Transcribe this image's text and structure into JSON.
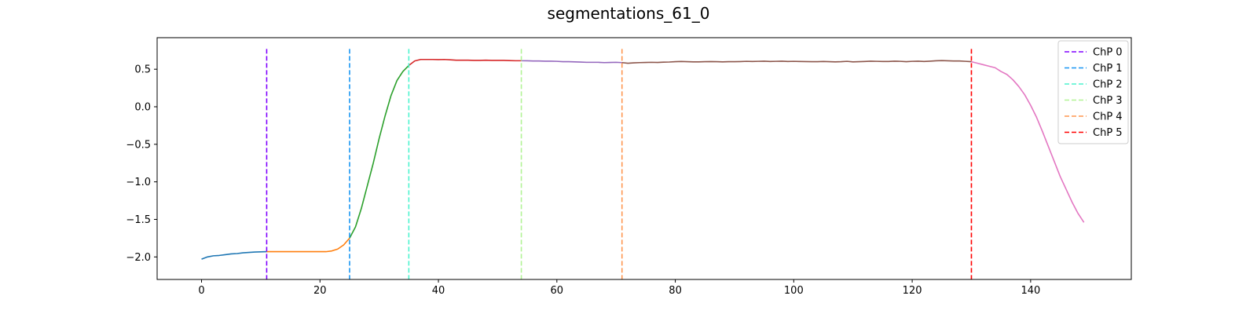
{
  "chart_data": {
    "type": "line",
    "title": "segmentations_61_0",
    "xlabel": "",
    "ylabel": "",
    "xlim": [
      -7.5,
      157
    ],
    "ylim": [
      -2.3,
      0.92
    ],
    "xticks": [
      0,
      20,
      40,
      60,
      80,
      100,
      120,
      140
    ],
    "yticks": [
      0.5,
      0.0,
      -0.5,
      -1.0,
      -1.5,
      -2.0
    ],
    "ytick_labels": [
      "0.5",
      "0.0",
      "−0.5",
      "−1.0",
      "−1.5",
      "−2.0"
    ],
    "grid": false,
    "legend_position": "top-right",
    "segments": [
      {
        "color": "#1f77b4",
        "points": [
          [
            0,
            -2.03
          ],
          [
            1,
            -2.0
          ],
          [
            2,
            -1.985
          ],
          [
            3,
            -1.98
          ],
          [
            4,
            -1.97
          ],
          [
            5,
            -1.96
          ],
          [
            6,
            -1.955
          ],
          [
            7,
            -1.945
          ],
          [
            8,
            -1.94
          ],
          [
            9,
            -1.935
          ],
          [
            10,
            -1.932
          ],
          [
            11,
            -1.93
          ]
        ]
      },
      {
        "color": "#ff7f0e",
        "points": [
          [
            11,
            -1.93
          ],
          [
            12,
            -1.93
          ],
          [
            13,
            -1.93
          ],
          [
            14,
            -1.93
          ],
          [
            15,
            -1.93
          ],
          [
            16,
            -1.93
          ],
          [
            17,
            -1.93
          ],
          [
            18,
            -1.93
          ],
          [
            19,
            -1.93
          ],
          [
            20,
            -1.93
          ],
          [
            21,
            -1.93
          ],
          [
            22,
            -1.92
          ],
          [
            23,
            -1.895
          ],
          [
            24,
            -1.84
          ],
          [
            25,
            -1.75
          ]
        ]
      },
      {
        "color": "#2ca02c",
        "points": [
          [
            25,
            -1.75
          ],
          [
            26,
            -1.6
          ],
          [
            27,
            -1.35
          ],
          [
            28,
            -1.05
          ],
          [
            29,
            -0.75
          ],
          [
            30,
            -0.42
          ],
          [
            31,
            -0.12
          ],
          [
            32,
            0.15
          ],
          [
            33,
            0.35
          ],
          [
            34,
            0.47
          ],
          [
            35,
            0.55
          ]
        ]
      },
      {
        "color": "#d62728",
        "points": [
          [
            35,
            0.55
          ],
          [
            36,
            0.61
          ],
          [
            37,
            0.63
          ],
          [
            38,
            0.63
          ],
          [
            39,
            0.63
          ],
          [
            40,
            0.628
          ],
          [
            41,
            0.63
          ],
          [
            42,
            0.625
          ],
          [
            43,
            0.62
          ],
          [
            44,
            0.62
          ],
          [
            45,
            0.62
          ],
          [
            46,
            0.618
          ],
          [
            47,
            0.618
          ],
          [
            48,
            0.62
          ],
          [
            49,
            0.618
          ],
          [
            50,
            0.617
          ],
          [
            51,
            0.617
          ],
          [
            52,
            0.615
          ],
          [
            53,
            0.613
          ],
          [
            54,
            0.613
          ]
        ]
      },
      {
        "color": "#9467bd",
        "points": [
          [
            54,
            0.613
          ],
          [
            55,
            0.612
          ],
          [
            56,
            0.61
          ],
          [
            57,
            0.61
          ],
          [
            58,
            0.607
          ],
          [
            59,
            0.607
          ],
          [
            60,
            0.605
          ],
          [
            61,
            0.6
          ],
          [
            62,
            0.6
          ],
          [
            63,
            0.598
          ],
          [
            64,
            0.595
          ],
          [
            65,
            0.592
          ],
          [
            66,
            0.592
          ],
          [
            67,
            0.592
          ],
          [
            68,
            0.588
          ],
          [
            69,
            0.59
          ],
          [
            70,
            0.592
          ],
          [
            71,
            0.588
          ]
        ]
      },
      {
        "color": "#8c564b",
        "points": [
          [
            71,
            0.588
          ],
          [
            72,
            0.58
          ],
          [
            73,
            0.585
          ],
          [
            74,
            0.588
          ],
          [
            75,
            0.59
          ],
          [
            76,
            0.592
          ],
          [
            77,
            0.59
          ],
          [
            78,
            0.594
          ],
          [
            79,
            0.596
          ],
          [
            80,
            0.6
          ],
          [
            81,
            0.603
          ],
          [
            82,
            0.6
          ],
          [
            83,
            0.598
          ],
          [
            84,
            0.598
          ],
          [
            85,
            0.6
          ],
          [
            86,
            0.602
          ],
          [
            87,
            0.6
          ],
          [
            88,
            0.598
          ],
          [
            89,
            0.6
          ],
          [
            90,
            0.6
          ],
          [
            91,
            0.602
          ],
          [
            92,
            0.605
          ],
          [
            93,
            0.603
          ],
          [
            94,
            0.605
          ],
          [
            95,
            0.607
          ],
          [
            96,
            0.603
          ],
          [
            97,
            0.605
          ],
          [
            98,
            0.607
          ],
          [
            99,
            0.603
          ],
          [
            100,
            0.605
          ],
          [
            101,
            0.603
          ],
          [
            102,
            0.602
          ],
          [
            103,
            0.6
          ],
          [
            104,
            0.6
          ],
          [
            105,
            0.603
          ],
          [
            106,
            0.6
          ],
          [
            107,
            0.598
          ],
          [
            108,
            0.6
          ],
          [
            109,
            0.605
          ],
          [
            110,
            0.598
          ],
          [
            111,
            0.6
          ],
          [
            112,
            0.603
          ],
          [
            113,
            0.607
          ],
          [
            114,
            0.605
          ],
          [
            115,
            0.603
          ],
          [
            116,
            0.603
          ],
          [
            117,
            0.607
          ],
          [
            118,
            0.605
          ],
          [
            119,
            0.6
          ],
          [
            120,
            0.605
          ],
          [
            121,
            0.607
          ],
          [
            122,
            0.603
          ],
          [
            123,
            0.607
          ],
          [
            124,
            0.612
          ],
          [
            125,
            0.615
          ],
          [
            126,
            0.612
          ],
          [
            127,
            0.61
          ],
          [
            128,
            0.61
          ],
          [
            129,
            0.605
          ],
          [
            130,
            0.6
          ]
        ]
      },
      {
        "color": "#e377c2",
        "points": [
          [
            130,
            0.6
          ],
          [
            131,
            0.58
          ],
          [
            132,
            0.56
          ],
          [
            133,
            0.54
          ],
          [
            134,
            0.52
          ],
          [
            135,
            0.47
          ],
          [
            136,
            0.43
          ],
          [
            137,
            0.36
          ],
          [
            138,
            0.27
          ],
          [
            139,
            0.16
          ],
          [
            140,
            0.02
          ],
          [
            141,
            -0.14
          ],
          [
            142,
            -0.33
          ],
          [
            143,
            -0.53
          ],
          [
            144,
            -0.73
          ],
          [
            145,
            -0.93
          ],
          [
            146,
            -1.1
          ],
          [
            147,
            -1.27
          ],
          [
            148,
            -1.42
          ],
          [
            149,
            -1.54
          ]
        ]
      }
    ],
    "changepoints": [
      {
        "name": "ChP 0",
        "x": 11,
        "color": "#8000ff"
      },
      {
        "name": "ChP 1",
        "x": 25,
        "color": "#1996f3"
      },
      {
        "name": "ChP 2",
        "x": 35,
        "color": "#4df3ce"
      },
      {
        "name": "ChP 3",
        "x": 54,
        "color": "#b2f396"
      },
      {
        "name": "ChP 4",
        "x": 71,
        "color": "#ff964f"
      },
      {
        "name": "ChP 5",
        "x": 130,
        "color": "#ff0000"
      }
    ],
    "changepoint_ymax": 0.77
  }
}
